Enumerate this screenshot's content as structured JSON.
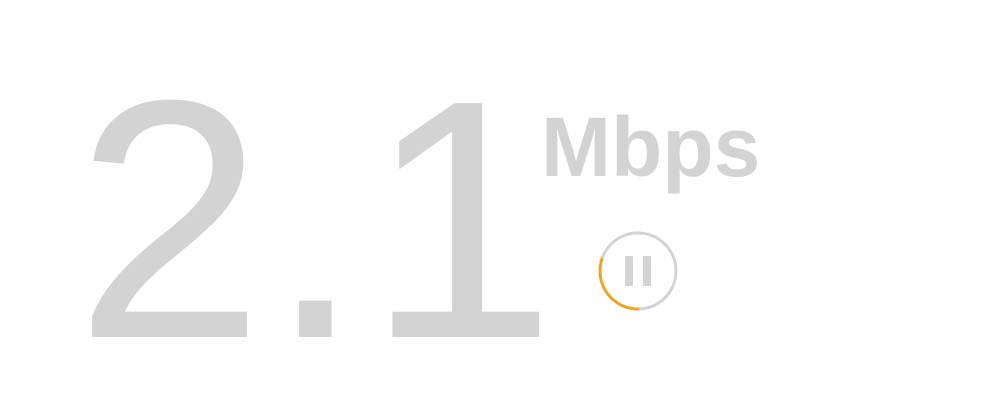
{
  "speed": {
    "value": "2.1",
    "units": "Mbps"
  },
  "pause_button": {
    "icon": "pause-icon",
    "progress": 0.3,
    "colors": {
      "ring": "#d3d3d3",
      "progress": "#f0a520",
      "icon": "#d3d3d3"
    }
  }
}
